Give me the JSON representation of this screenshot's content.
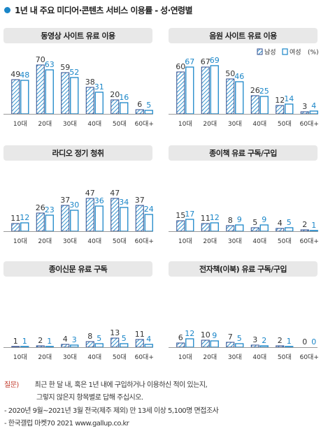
{
  "title": "1년 내 주요 미디어·콘텐츠 서비스 이용률 - 성·연령별",
  "legend": {
    "male": "남성",
    "female": "여성",
    "unit": "(%)"
  },
  "colors": {
    "accent": "#1a86c8",
    "male_stroke": "#2b4a8c",
    "female_stroke": "#1a86c8",
    "panel_bg": "#e8e8e8",
    "male_label": "#333333",
    "female_label": "#1a86c8"
  },
  "chart_data": [
    {
      "type": "bar",
      "title": "동영상 사이트 유료 이용",
      "categories": [
        "10대",
        "20대",
        "30대",
        "40대",
        "50대",
        "60대+"
      ],
      "series": [
        {
          "name": "남성",
          "values": [
            49,
            70,
            59,
            38,
            20,
            6
          ]
        },
        {
          "name": "여성",
          "values": [
            48,
            63,
            52,
            31,
            16,
            5
          ]
        }
      ]
    },
    {
      "type": "bar",
      "title": "음원 사이트 유료 이용",
      "categories": [
        "10대",
        "20대",
        "30대",
        "40대",
        "50대",
        "60대+"
      ],
      "series": [
        {
          "name": "남성",
          "values": [
            60,
            67,
            50,
            26,
            12,
            3
          ]
        },
        {
          "name": "여성",
          "values": [
            67,
            69,
            46,
            25,
            14,
            4
          ]
        }
      ]
    },
    {
      "type": "bar",
      "title": "라디오 정기 청취",
      "categories": [
        "10대",
        "20대",
        "30대",
        "40대",
        "50대",
        "60대+"
      ],
      "series": [
        {
          "name": "남성",
          "values": [
            11,
            26,
            37,
            47,
            47,
            37
          ]
        },
        {
          "name": "여성",
          "values": [
            12,
            23,
            30,
            36,
            34,
            24
          ]
        }
      ]
    },
    {
      "type": "bar",
      "title": "종이책 유료 구독/구입",
      "categories": [
        "10대",
        "20대",
        "30대",
        "40대",
        "50대",
        "60대+"
      ],
      "series": [
        {
          "name": "남성",
          "values": [
            15,
            11,
            8,
            5,
            4,
            2
          ]
        },
        {
          "name": "여성",
          "values": [
            17,
            12,
            9,
            9,
            5,
            1
          ]
        }
      ]
    },
    {
      "type": "bar",
      "title": "종이신문 유료 구독",
      "categories": [
        "10대",
        "20대",
        "30대",
        "40대",
        "50대",
        "60대+"
      ],
      "series": [
        {
          "name": "남성",
          "values": [
            1,
            2,
            4,
            8,
            13,
            11
          ]
        },
        {
          "name": "여성",
          "values": [
            1,
            1,
            3,
            5,
            5,
            4
          ]
        }
      ]
    },
    {
      "type": "bar",
      "title": "전자책(이북) 유료 구독/구입",
      "categories": [
        "10대",
        "20대",
        "30대",
        "40대",
        "50대",
        "60대+"
      ],
      "series": [
        {
          "name": "남성",
          "values": [
            6,
            10,
            7,
            3,
            2,
            0
          ]
        },
        {
          "name": "여성",
          "values": [
            12,
            9,
            5,
            2,
            1,
            0
          ]
        }
      ]
    }
  ],
  "footer": {
    "question_label": "질문)",
    "question_line1": "최근 한 달 내, 혹은 1년 내에 구입하거나 이용하신 적이 있는지,",
    "question_line2": "그렇지 않은지 항목별로 답해 주십시오.",
    "survey": "- 2020년 9월~2021년 3월 전국(제주 제외) 만 13세 이상 5,100명 면접조사",
    "source": "- 한국갤럽 마켓70 2021 www.gallup.co.kr"
  }
}
